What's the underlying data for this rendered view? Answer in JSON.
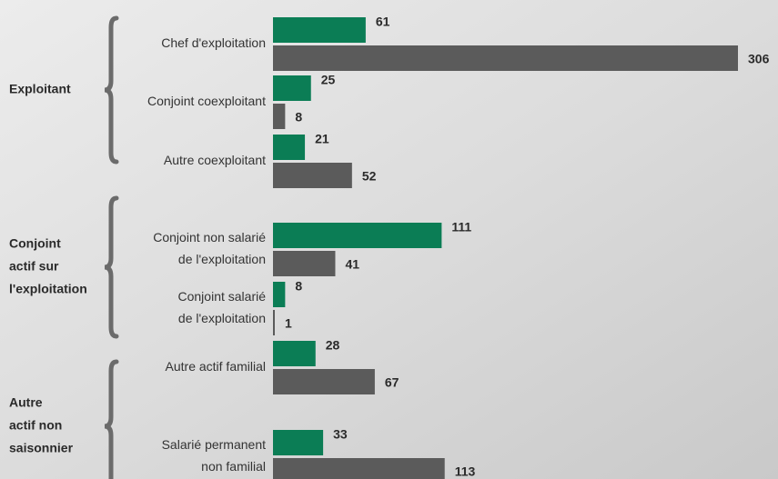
{
  "chart_data": {
    "type": "bar",
    "orientation": "horizontal",
    "groups": [
      {
        "label": [
          "Exploitant"
        ],
        "categories": [
          [
            "Chef d'exploitation"
          ],
          [
            "Conjoint coexploitant"
          ],
          [
            "Autre coexploitant"
          ]
        ]
      },
      {
        "label": [
          "Conjoint",
          "actif sur",
          "l'exploitation"
        ],
        "categories": [
          [
            "Conjoint non salarié",
            "de l'exploitation"
          ],
          [
            "Conjoint salarié",
            "de l'exploitation"
          ]
        ]
      },
      {
        "label": [
          "Autre",
          "actif non",
          "saisonnier"
        ],
        "categories": [
          [
            "Autre actif familial"
          ],
          [
            "Salarié permanent",
            "non familial"
          ]
        ]
      }
    ],
    "series": [
      {
        "color": "#0b7d55",
        "values": [
          61,
          25,
          21,
          111,
          8,
          28,
          33
        ]
      },
      {
        "color": "#5b5b5b",
        "values": [
          306,
          8,
          52,
          41,
          1,
          67,
          113
        ]
      }
    ],
    "xlim": [
      0,
      306
    ]
  }
}
